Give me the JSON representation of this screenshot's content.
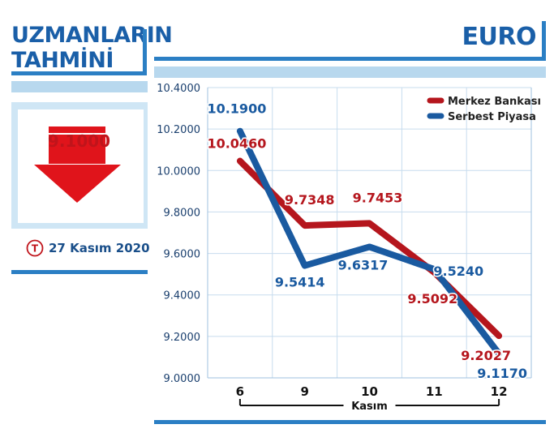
{
  "left_panel": {
    "title_line1": "UZMANLARIN",
    "title_line2": "TAHMİNİ",
    "forecast_value": "9.1000",
    "forecast_direction": "down",
    "date": "27 Kasım 2020",
    "logo_letter": "T",
    "accent_color": "#c0141b",
    "brand_color": "#1a5fa8"
  },
  "chart_title": "EURO",
  "chart_data": {
    "type": "line",
    "title": "EURO",
    "xlabel": "Kasım",
    "ylabel": "",
    "categories": [
      "6",
      "9",
      "10",
      "11",
      "12"
    ],
    "ylim": [
      9.0,
      10.4
    ],
    "yticks": [
      "9.0000",
      "9.2000",
      "9.4000",
      "9.6000",
      "9.8000",
      "10.0000",
      "10.2000",
      "10.4000"
    ],
    "grid": true,
    "legend_position": "top-right",
    "series": [
      {
        "name": "Merkez Bankası",
        "color": "#b5161d",
        "values": [
          10.046,
          9.7348,
          9.7453,
          9.5092,
          9.2027
        ],
        "labels": [
          "10.0460",
          "9.7348",
          "9.7453",
          "9.5092",
          "9.2027"
        ]
      },
      {
        "name": "Serbest Piyasa",
        "color": "#1a5aa0",
        "values": [
          10.19,
          9.5414,
          9.6317,
          9.524,
          9.117
        ],
        "labels": [
          "10.1900",
          "9.5414",
          "9.6317",
          "9.5240",
          "9.1170"
        ]
      }
    ]
  }
}
